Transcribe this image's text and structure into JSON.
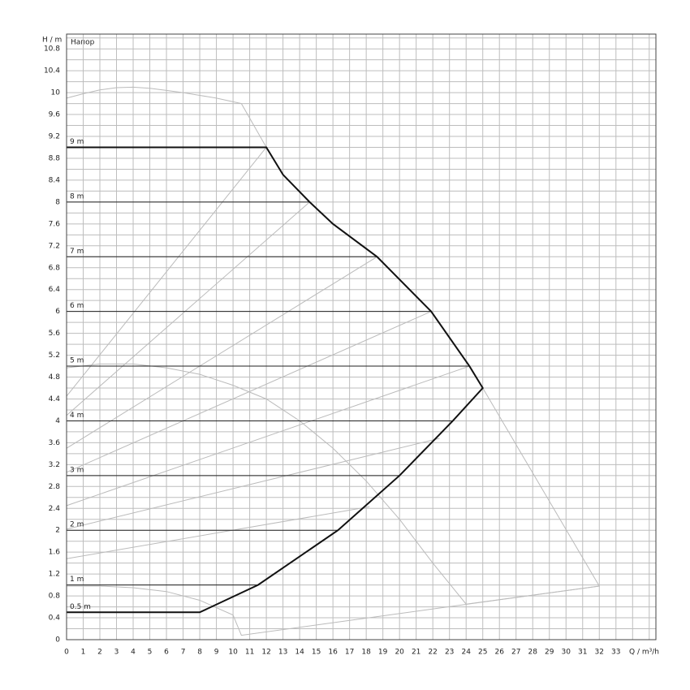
{
  "chart_data": {
    "type": "line",
    "y_label": "H / m",
    "x_label": "Q / m³/h",
    "annotation": "Напор",
    "xlim": [
      0,
      35.4
    ],
    "ylim": [
      0,
      11.07
    ],
    "xticks": [
      0,
      1,
      2,
      3,
      4,
      5,
      6,
      7,
      8,
      9,
      10,
      11,
      12,
      13,
      14,
      15,
      16,
      17,
      18,
      19,
      20,
      21,
      22,
      23,
      24,
      25,
      26,
      27,
      28,
      29,
      30,
      31,
      32,
      33
    ],
    "yticks": [
      0,
      0.4,
      0.8,
      1.2,
      1.6,
      2,
      2.4,
      2.8,
      3.2,
      3.6,
      4,
      4.4,
      4.8,
      5.2,
      5.6,
      6,
      6.4,
      6.8,
      7.2,
      7.6,
      8,
      8.4,
      8.8,
      9.2,
      9.6,
      10,
      10.4,
      10.8
    ],
    "grid": true,
    "curves": [
      {
        "color": "#bbbbbb",
        "x": [
          0,
          1,
          2,
          3,
          4,
          5,
          6,
          7,
          8,
          9,
          10.5,
          12
        ],
        "y": [
          9.9,
          9.98,
          10.05,
          10.09,
          10.1,
          10.08,
          10.04,
          10,
          9.95,
          9.9,
          9.8,
          9
        ]
      },
      {
        "color": "#bbbbbb",
        "x": [
          0,
          2,
          4,
          6,
          8,
          10,
          12,
          14,
          16,
          18,
          20,
          22,
          24,
          32,
          25
        ],
        "y": [
          4.97,
          5.04,
          5.04,
          4.97,
          4.85,
          4.65,
          4.4,
          4,
          3.5,
          2.9,
          2.2,
          1.4,
          0.65,
          0.98,
          4.6
        ]
      },
      {
        "color": "#bbbbbb",
        "x": [
          0,
          2,
          4,
          6,
          8,
          10,
          10.5,
          32
        ],
        "y": [
          0.98,
          0.98,
          0.95,
          0.88,
          0.72,
          0.45,
          0.08,
          0.98
        ]
      },
      {
        "color": "#bbbbbb",
        "x": [
          0,
          12
        ],
        "y": [
          4.45,
          9
        ]
      },
      {
        "color": "#bbbbbb",
        "x": [
          0,
          14.6
        ],
        "y": [
          4.1,
          8
        ]
      },
      {
        "color": "#bbbbbb",
        "x": [
          0,
          18.65
        ],
        "y": [
          3.5,
          7
        ]
      },
      {
        "color": "#bbbbbb",
        "x": [
          0,
          21.9
        ],
        "y": [
          3.06,
          6
        ]
      },
      {
        "color": "#bbbbbb",
        "x": [
          0,
          24.2
        ],
        "y": [
          2.45,
          5
        ]
      },
      {
        "color": "#bbbbbb",
        "x": [
          0,
          22.4
        ],
        "y": [
          2.02,
          3.68
        ]
      },
      {
        "color": "#bbbbbb",
        "x": [
          0,
          18.2
        ],
        "y": [
          1.48,
          2.43
        ]
      },
      {
        "label": "9 m",
        "color": "#222222",
        "x": [
          0,
          12
        ],
        "y": [
          9,
          9
        ]
      },
      {
        "label": "8 m",
        "color": "#222222",
        "x": [
          0,
          14.6
        ],
        "y": [
          8,
          8
        ]
      },
      {
        "label": "7 m",
        "color": "#222222",
        "x": [
          0,
          18.65
        ],
        "y": [
          7,
          7
        ]
      },
      {
        "label": "6 m",
        "color": "#222222",
        "x": [
          0,
          21.9
        ],
        "y": [
          6,
          6
        ]
      },
      {
        "label": "5 m",
        "color": "#222222",
        "x": [
          0,
          24.2
        ],
        "y": [
          5,
          5
        ]
      },
      {
        "label": "4 m",
        "color": "#222222",
        "x": [
          0,
          23.2
        ],
        "y": [
          4,
          4
        ]
      },
      {
        "label": "3 m",
        "color": "#222222",
        "x": [
          0,
          20
        ],
        "y": [
          3,
          3
        ]
      },
      {
        "label": "2 m",
        "color": "#222222",
        "x": [
          0,
          16.3
        ],
        "y": [
          2,
          2
        ]
      },
      {
        "label": "1 m",
        "color": "#222222",
        "x": [
          0,
          11.5
        ],
        "y": [
          1,
          1
        ]
      },
      {
        "label": "0.5 m",
        "color": "#222222",
        "x": [
          0,
          8
        ],
        "y": [
          0.5,
          0.5
        ]
      },
      {
        "color": "#111111",
        "bold": true,
        "x": [
          0,
          12,
          13,
          14.6,
          16,
          18.65,
          21.9,
          24.2,
          25,
          23.2,
          20,
          16.3,
          11.5,
          8,
          0
        ],
        "y": [
          9,
          9,
          8.5,
          8,
          7.6,
          7,
          6,
          5,
          4.6,
          4,
          3,
          2,
          1,
          0.5,
          0.5
        ]
      }
    ]
  }
}
